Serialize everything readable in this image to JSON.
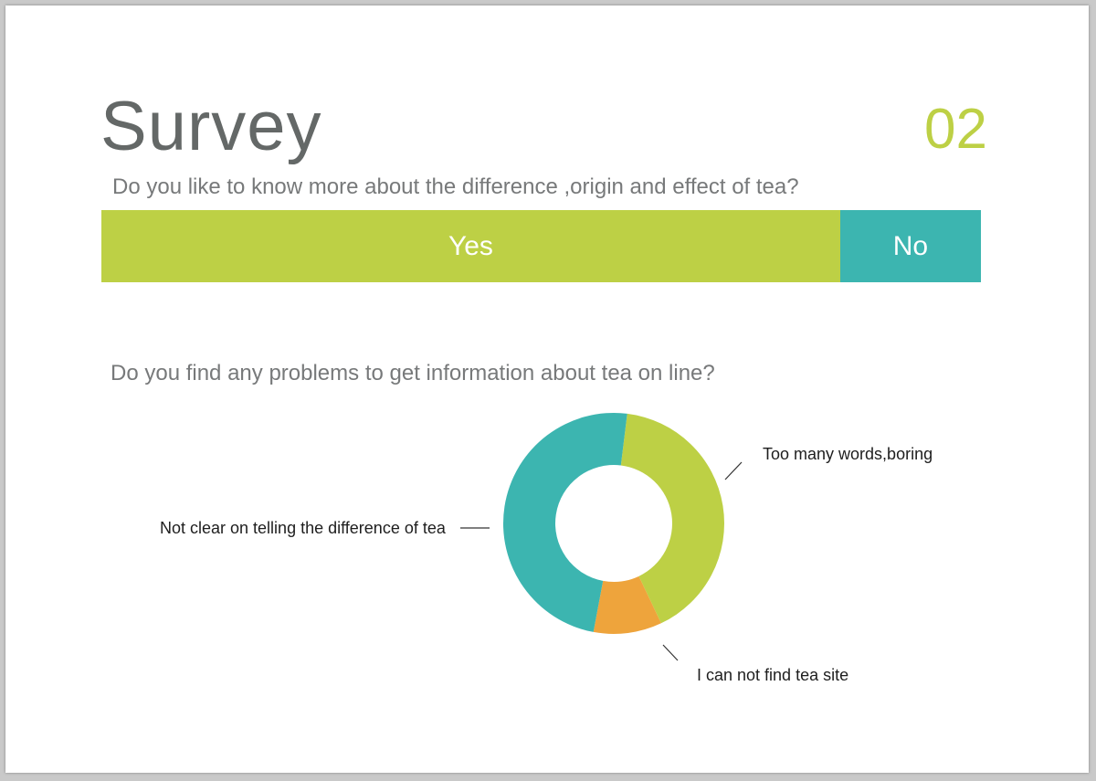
{
  "slide": {
    "title": "Survey",
    "page_number": "02"
  },
  "questions": {
    "q1": "Do you like to know more about the difference ,origin and effect of tea?",
    "q2": "Do you find any problems to get information about tea on line?"
  },
  "colors": {
    "green": "#bdd045",
    "teal": "#3cb5b0",
    "orange": "#eea43c",
    "title": "#646867",
    "question": "#77797a"
  },
  "chart_data": [
    {
      "type": "bar",
      "orientation": "horizontal-stacked",
      "categories": [
        "Yes",
        "No"
      ],
      "values": [
        84,
        16
      ],
      "unit": "percent (estimated)",
      "colors": [
        "#bdd045",
        "#3cb5b0"
      ]
    },
    {
      "type": "pie",
      "variant": "donut",
      "labels": [
        "Too many words,boring",
        "I can not find tea site",
        "Not clear on telling the difference of tea"
      ],
      "values": [
        41,
        10,
        49
      ],
      "unit": "percent (estimated)",
      "colors": [
        "#bdd045",
        "#eea43c",
        "#3cb5b0"
      ],
      "start_angle_deg": 7,
      "direction": "clockwise"
    }
  ]
}
